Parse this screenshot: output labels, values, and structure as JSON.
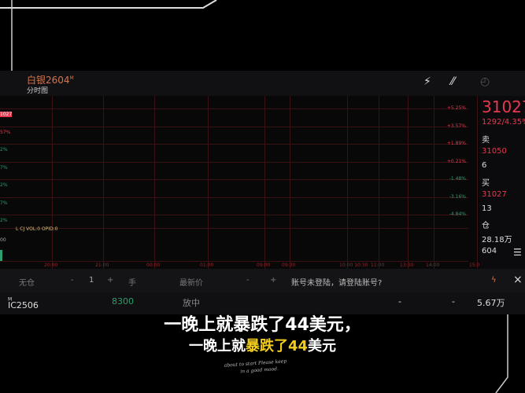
{
  "header": {
    "symbol": "白银2604",
    "symbol_mark": "M",
    "subtitle": "分时图",
    "icons": [
      "lightning-icon",
      "draw-icon",
      "clock-icon"
    ]
  },
  "chart": {
    "right_axis": [
      "+5.25%",
      "+3.57%",
      "+1.89%",
      "+0.21%",
      "-1.48%",
      "-3.16%",
      "-4.84%"
    ],
    "left_axis": [
      "1027",
      "57%",
      "2%",
      "7%",
      "2%",
      "7%",
      "2%"
    ],
    "time_axis": [
      "20:00",
      "21:00",
      "00:00",
      "01:00",
      "09:00",
      "09:30",
      "10:00 10:30",
      "11:00",
      "13:30",
      "14:00",
      "15:00"
    ],
    "indicator": "L CJ VOL:0 OPID:0",
    "left_bottom": "00",
    "colors": {
      "up": "#e8384f",
      "down": "#2e9e6e",
      "grid": "#3a1216"
    }
  },
  "right_panel": {
    "price": "31027",
    "change": "1292/4.35%",
    "sell_label": "卖",
    "sell_price": "31050",
    "sell_qty": "6",
    "buy_label": "买",
    "buy_price": "31027",
    "buy_qty": "13",
    "oi_label": "仓",
    "oi_value": "28.18万",
    "oi_extra": "604"
  },
  "order_bar": {
    "position": "无仓",
    "minus": "-",
    "qty": "1",
    "plus": "+",
    "unit": "手",
    "price_type": "最新价",
    "minus2": "-",
    "plus2": "+",
    "login_msg": "账号未登陆，请登陆账号?",
    "close": "×"
  },
  "list_row": {
    "symbol": "IC2506",
    "mark": "M",
    "price": "8300",
    "status": "放中",
    "d1": "-",
    "d2": "-",
    "volume": "5.67万"
  },
  "captions": {
    "line1": "一晚上就暴跌了44美元，",
    "line2_a": "一晚上就",
    "line2_b": "暴跌了44",
    "line2_c": "美元"
  },
  "signature": [
    "about to start Please keep",
    "in a good mood."
  ]
}
